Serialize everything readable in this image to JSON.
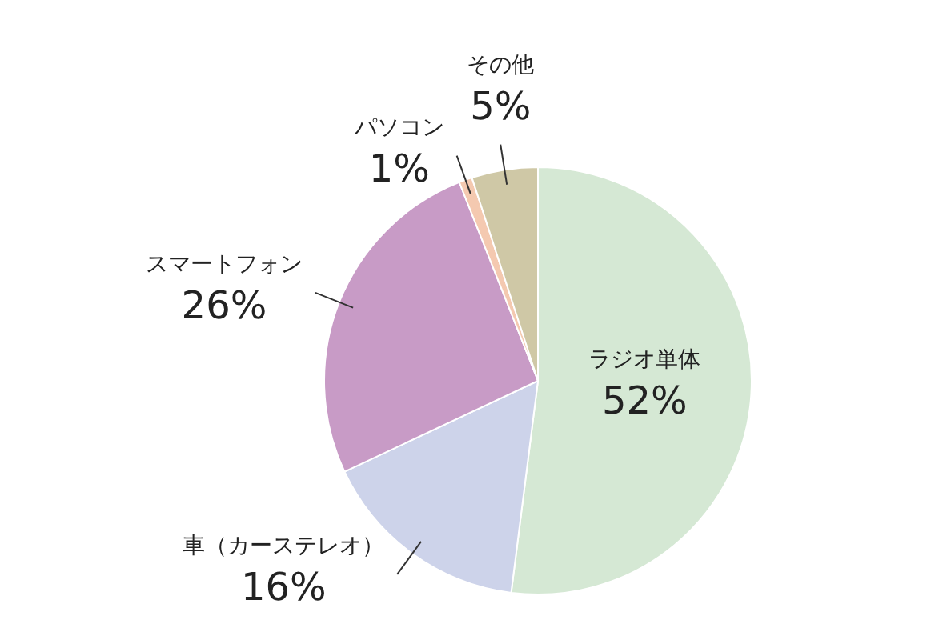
{
  "chart_data": {
    "type": "pie",
    "categories": [
      "ラジオ単体",
      "車（カーステレオ）",
      "スマートフォン",
      "パソコン",
      "その他"
    ],
    "values": [
      52,
      16,
      26,
      1,
      5
    ],
    "colors": [
      "#d5e8d4",
      "#cdd3ea",
      "#c89bc6",
      "#f4c9b0",
      "#cfc8a6"
    ],
    "value_labels": [
      "52%",
      "16%",
      "26%",
      "1%",
      "5%"
    ],
    "legend": false
  }
}
